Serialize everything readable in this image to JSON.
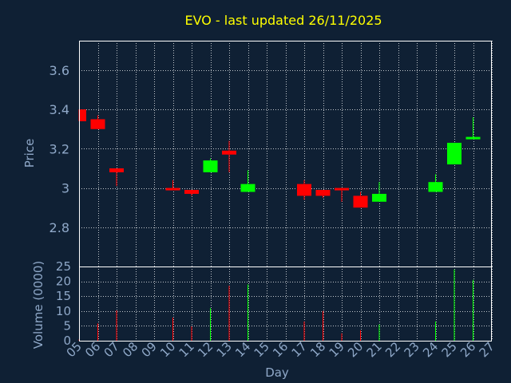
{
  "chart_data": {
    "type": "candlestick",
    "title": "EVO - last updated 26/11/2025",
    "xlabel": "Day",
    "price_panel": {
      "ylabel": "Price",
      "ylim": [
        2.6,
        3.75
      ],
      "yticks": [
        2.8,
        3,
        3.2,
        3.4,
        3.6
      ],
      "ytick_labels": [
        "2.8",
        "3",
        "3.2",
        "3.4",
        "3.6"
      ]
    },
    "volume_panel": {
      "ylabel": "Volume (0000)",
      "ylim": [
        0,
        25
      ],
      "yticks": [
        0,
        5,
        10,
        15,
        20,
        25
      ],
      "ytick_labels": [
        "0",
        "5",
        "10",
        "15",
        "20",
        "25"
      ]
    },
    "x_ticks": [
      "05",
      "06",
      "07",
      "08",
      "09",
      "10",
      "11",
      "12",
      "13",
      "14",
      "15",
      "16",
      "17",
      "18",
      "19",
      "20",
      "21",
      "22",
      "23",
      "24",
      "25",
      "26",
      "27"
    ],
    "grid": true,
    "colors": {
      "background": "#0f2034",
      "title": "#ffff00",
      "axis_text": "#8fa8c8",
      "up": "#00ff00",
      "down": "#ff0000",
      "grid": "#ffffff"
    },
    "candles": [
      {
        "day": 5,
        "open": 3.4,
        "high": 3.4,
        "low": 3.34,
        "close": 3.34
      },
      {
        "day": 6,
        "open": 3.35,
        "high": 3.37,
        "low": 3.3,
        "close": 3.3
      },
      {
        "day": 7,
        "open": 3.1,
        "high": 3.1,
        "low": 3.01,
        "close": 3.08
      },
      {
        "day": 10,
        "open": 3.0,
        "high": 3.04,
        "low": 2.99,
        "close": 2.99
      },
      {
        "day": 11,
        "open": 2.99,
        "high": 2.99,
        "low": 2.96,
        "close": 2.97
      },
      {
        "day": 12,
        "open": 3.08,
        "high": 3.15,
        "low": 3.08,
        "close": 3.14
      },
      {
        "day": 13,
        "open": 3.19,
        "high": 3.24,
        "low": 3.08,
        "close": 3.17
      },
      {
        "day": 14,
        "open": 2.98,
        "high": 3.09,
        "low": 2.98,
        "close": 3.02
      },
      {
        "day": 17,
        "open": 3.02,
        "high": 3.04,
        "low": 2.94,
        "close": 2.96
      },
      {
        "day": 18,
        "open": 2.99,
        "high": 2.99,
        "low": 2.95,
        "close": 2.96
      },
      {
        "day": 19,
        "open": 3.0,
        "high": 3.0,
        "low": 2.93,
        "close": 2.99
      },
      {
        "day": 20,
        "open": 2.96,
        "high": 2.98,
        "low": 2.9,
        "close": 2.9
      },
      {
        "day": 21,
        "open": 2.93,
        "high": 3.03,
        "low": 2.93,
        "close": 2.97
      },
      {
        "day": 24,
        "open": 2.98,
        "high": 3.07,
        "low": 2.98,
        "close": 3.03
      },
      {
        "day": 25,
        "open": 3.12,
        "high": 3.23,
        "low": 3.12,
        "close": 3.23
      },
      {
        "day": 26,
        "open": 3.25,
        "high": 3.36,
        "low": 3.25,
        "close": 3.26
      }
    ],
    "volumes": [
      {
        "day": 5,
        "value": 0.4,
        "up": false
      },
      {
        "day": 6,
        "value": 5.8,
        "up": false
      },
      {
        "day": 7,
        "value": 10.2,
        "up": false
      },
      {
        "day": 10,
        "value": 7.8,
        "up": false
      },
      {
        "day": 11,
        "value": 4.8,
        "up": false
      },
      {
        "day": 12,
        "value": 11.0,
        "up": true
      },
      {
        "day": 13,
        "value": 18.5,
        "up": false
      },
      {
        "day": 14,
        "value": 19.0,
        "up": true
      },
      {
        "day": 17,
        "value": 6.5,
        "up": false
      },
      {
        "day": 18,
        "value": 10.0,
        "up": false
      },
      {
        "day": 19,
        "value": 2.5,
        "up": false
      },
      {
        "day": 20,
        "value": 3.5,
        "up": false
      },
      {
        "day": 21,
        "value": 5.5,
        "up": true
      },
      {
        "day": 24,
        "value": 6.5,
        "up": true
      },
      {
        "day": 25,
        "value": 24.0,
        "up": true
      },
      {
        "day": 26,
        "value": 20.5,
        "up": true
      }
    ]
  }
}
